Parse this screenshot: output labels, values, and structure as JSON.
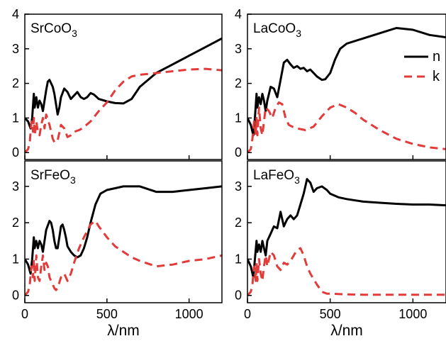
{
  "chart_data": [
    {
      "type": "line",
      "panel_label": "SrCoO",
      "panel_label_sub": "3",
      "xlim": [
        0,
        1200
      ],
      "ylim": [
        -0.2,
        4.0
      ],
      "xticks": [
        0,
        500,
        1000
      ],
      "yticks": [
        0,
        1,
        2,
        3,
        4
      ],
      "xlabel": "",
      "series": [
        {
          "key": "n",
          "color": "#000000",
          "dash": "solid",
          "x": [
            0,
            20,
            35,
            45,
            55,
            60,
            70,
            80,
            90,
            100,
            110,
            120,
            130,
            140,
            150,
            160,
            170,
            180,
            190,
            200,
            210,
            220,
            240,
            260,
            280,
            300,
            320,
            340,
            360,
            380,
            400,
            420,
            450,
            500,
            550,
            600,
            650,
            700,
            800,
            900,
            1000,
            1100,
            1200
          ],
          "y": [
            1.0,
            0.9,
            0.7,
            1.0,
            1.7,
            1.3,
            1.6,
            1.3,
            1.5,
            1.4,
            1.2,
            1.5,
            1.8,
            2.05,
            2.1,
            2.0,
            1.9,
            1.7,
            1.4,
            1.1,
            1.3,
            1.6,
            1.85,
            1.75,
            1.55,
            1.65,
            1.75,
            1.6,
            1.55,
            1.6,
            1.72,
            1.68,
            1.55,
            1.48,
            1.43,
            1.42,
            1.55,
            1.9,
            2.3,
            2.55,
            2.8,
            3.05,
            3.3
          ]
        },
        {
          "key": "k",
          "color": "#e33a3a",
          "dash": "dashed",
          "x": [
            0,
            20,
            30,
            40,
            50,
            55,
            60,
            70,
            80,
            90,
            100,
            110,
            120,
            130,
            140,
            150,
            170,
            180,
            190,
            200,
            220,
            240,
            260,
            280,
            300,
            330,
            350,
            400,
            450,
            500,
            550,
            600,
            650,
            700,
            800,
            900,
            1000,
            1100,
            1200
          ],
          "y": [
            0.0,
            0.1,
            0.3,
            0.9,
            0.6,
            1.0,
            0.5,
            0.9,
            0.6,
            0.5,
            0.8,
            1.0,
            0.7,
            1.1,
            0.95,
            0.8,
            0.4,
            0.3,
            0.3,
            0.35,
            0.8,
            0.7,
            0.45,
            0.5,
            0.6,
            0.65,
            0.7,
            0.9,
            1.2,
            1.45,
            1.8,
            2.05,
            2.2,
            2.25,
            2.3,
            2.35,
            2.4,
            2.42,
            2.38
          ]
        }
      ]
    },
    {
      "type": "line",
      "panel_label": "LaCoO",
      "panel_label_sub": "3",
      "xlim": [
        0,
        1200
      ],
      "ylim": [
        -0.2,
        4.0
      ],
      "xticks": [
        0,
        500,
        1000
      ],
      "yticks": [
        0,
        1,
        2,
        3,
        4
      ],
      "xlabel": "",
      "legend": {
        "position": "right",
        "entries": [
          "n",
          "k"
        ]
      },
      "series": [
        {
          "key": "n",
          "color": "#000000",
          "dash": "solid",
          "x": [
            0,
            20,
            35,
            45,
            55,
            60,
            70,
            80,
            90,
            100,
            110,
            120,
            140,
            160,
            180,
            200,
            220,
            240,
            260,
            280,
            300,
            320,
            340,
            360,
            380,
            400,
            420,
            450,
            470,
            500,
            530,
            560,
            600,
            700,
            800,
            900,
            1000,
            1100,
            1200
          ],
          "y": [
            1.0,
            0.8,
            0.5,
            1.0,
            1.7,
            1.3,
            1.6,
            1.4,
            1.7,
            1.5,
            1.2,
            1.5,
            1.9,
            1.85,
            1.6,
            2.1,
            2.6,
            2.68,
            2.55,
            2.45,
            2.5,
            2.42,
            2.45,
            2.35,
            2.4,
            2.3,
            2.2,
            2.1,
            2.12,
            2.3,
            2.7,
            3.0,
            3.15,
            3.3,
            3.45,
            3.6,
            3.55,
            3.4,
            3.33
          ]
        },
        {
          "key": "k",
          "color": "#e33a3a",
          "dash": "dashed",
          "x": [
            0,
            20,
            30,
            40,
            50,
            55,
            60,
            70,
            80,
            90,
            100,
            110,
            130,
            150,
            170,
            190,
            210,
            230,
            250,
            270,
            300,
            350,
            400,
            450,
            500,
            550,
            600,
            650,
            700,
            800,
            900,
            1000,
            1100,
            1200
          ],
          "y": [
            0.0,
            0.1,
            0.4,
            0.9,
            0.5,
            1.0,
            0.5,
            1.3,
            0.7,
            0.5,
            0.9,
            1.3,
            1.2,
            1.0,
            1.3,
            1.45,
            1.4,
            1.0,
            0.8,
            0.75,
            0.7,
            0.65,
            0.75,
            1.05,
            1.3,
            1.4,
            1.3,
            1.15,
            0.95,
            0.65,
            0.4,
            0.25,
            0.15,
            0.1
          ]
        }
      ]
    },
    {
      "type": "line",
      "panel_label": "SrFeO",
      "panel_label_sub": "3",
      "xlim": [
        0,
        1200
      ],
      "ylim": [
        -0.2,
        3.7
      ],
      "xticks": [
        0,
        500,
        1000
      ],
      "yticks": [
        0,
        1,
        2,
        3
      ],
      "xlabel": "λ/nm",
      "series": [
        {
          "key": "n",
          "color": "#000000",
          "dash": "solid",
          "x": [
            0,
            20,
            35,
            45,
            55,
            60,
            70,
            80,
            90,
            100,
            110,
            120,
            130,
            150,
            160,
            170,
            180,
            190,
            200,
            210,
            220,
            230,
            240,
            250,
            260,
            280,
            300,
            320,
            340,
            360,
            380,
            400,
            430,
            460,
            500,
            550,
            600,
            700,
            800,
            900,
            1000,
            1100,
            1200
          ],
          "y": [
            1.0,
            0.85,
            0.6,
            1.0,
            1.6,
            1.3,
            1.5,
            1.3,
            1.5,
            1.4,
            1.2,
            1.5,
            1.8,
            2.05,
            2.0,
            1.8,
            1.5,
            1.3,
            1.3,
            1.6,
            1.9,
            1.95,
            1.8,
            1.6,
            1.35,
            1.2,
            1.1,
            1.05,
            1.1,
            1.3,
            1.6,
            2.0,
            2.5,
            2.8,
            2.9,
            2.95,
            3.0,
            3.0,
            2.85,
            2.85,
            2.9,
            2.95,
            3.0
          ]
        },
        {
          "key": "k",
          "color": "#e33a3a",
          "dash": "dashed",
          "x": [
            0,
            20,
            30,
            40,
            50,
            55,
            60,
            70,
            80,
            90,
            100,
            110,
            120,
            130,
            140,
            150,
            170,
            180,
            190,
            200,
            220,
            240,
            260,
            280,
            300,
            330,
            360,
            400,
            430,
            450,
            500,
            550,
            600,
            650,
            700,
            800,
            900,
            1000,
            1100,
            1200
          ],
          "y": [
            0.0,
            0.1,
            0.3,
            0.8,
            0.5,
            1.0,
            0.4,
            1.1,
            0.5,
            0.4,
            0.8,
            1.1,
            0.7,
            0.9,
            0.8,
            0.5,
            0.3,
            0.2,
            0.15,
            0.2,
            0.5,
            0.6,
            0.4,
            0.6,
            0.9,
            1.3,
            1.6,
            1.95,
            2.05,
            1.9,
            1.6,
            1.35,
            1.2,
            1.05,
            0.95,
            0.8,
            0.85,
            0.95,
            1.0,
            1.1
          ]
        }
      ]
    },
    {
      "type": "line",
      "panel_label": "LaFeO",
      "panel_label_sub": "3",
      "xlim": [
        0,
        1200
      ],
      "ylim": [
        -0.2,
        3.7
      ],
      "xticks": [
        0,
        500,
        1000
      ],
      "yticks": [
        0,
        1,
        2,
        3
      ],
      "xlabel": "λ/nm",
      "series": [
        {
          "key": "n",
          "color": "#000000",
          "dash": "solid",
          "x": [
            0,
            20,
            35,
            45,
            55,
            60,
            70,
            80,
            90,
            100,
            110,
            120,
            140,
            160,
            180,
            200,
            220,
            240,
            260,
            280,
            300,
            320,
            340,
            360,
            380,
            400,
            420,
            450,
            480,
            500,
            550,
            600,
            700,
            800,
            900,
            1000,
            1100,
            1200
          ],
          "y": [
            1.0,
            0.8,
            0.5,
            1.0,
            1.5,
            1.2,
            1.4,
            1.2,
            1.5,
            1.3,
            1.1,
            1.5,
            1.7,
            1.9,
            1.85,
            2.3,
            1.9,
            2.1,
            2.2,
            2.1,
            2.2,
            2.5,
            2.8,
            3.2,
            3.1,
            2.85,
            2.95,
            3.0,
            2.9,
            2.8,
            2.7,
            2.65,
            2.58,
            2.55,
            2.52,
            2.5,
            2.5,
            2.48
          ]
        },
        {
          "key": "k",
          "color": "#e33a3a",
          "dash": "dashed",
          "x": [
            0,
            20,
            30,
            40,
            50,
            55,
            60,
            70,
            80,
            90,
            100,
            110,
            120,
            140,
            160,
            180,
            200,
            220,
            240,
            260,
            280,
            300,
            320,
            340,
            360,
            380,
            400,
            420,
            450,
            480,
            500,
            600,
            700,
            800,
            900,
            1000,
            1100,
            1200
          ],
          "y": [
            0.0,
            0.1,
            0.3,
            0.8,
            0.4,
            0.9,
            0.4,
            1.0,
            0.6,
            0.4,
            0.8,
            1.1,
            0.8,
            1.2,
            1.1,
            0.8,
            0.7,
            0.9,
            0.85,
            0.95,
            1.1,
            1.25,
            1.3,
            1.1,
            0.8,
            0.6,
            0.45,
            0.3,
            0.1,
            0.05,
            0.05,
            0.03,
            0.02,
            0.02,
            0.02,
            0.02,
            0.02,
            0.02
          ]
        }
      ]
    }
  ]
}
